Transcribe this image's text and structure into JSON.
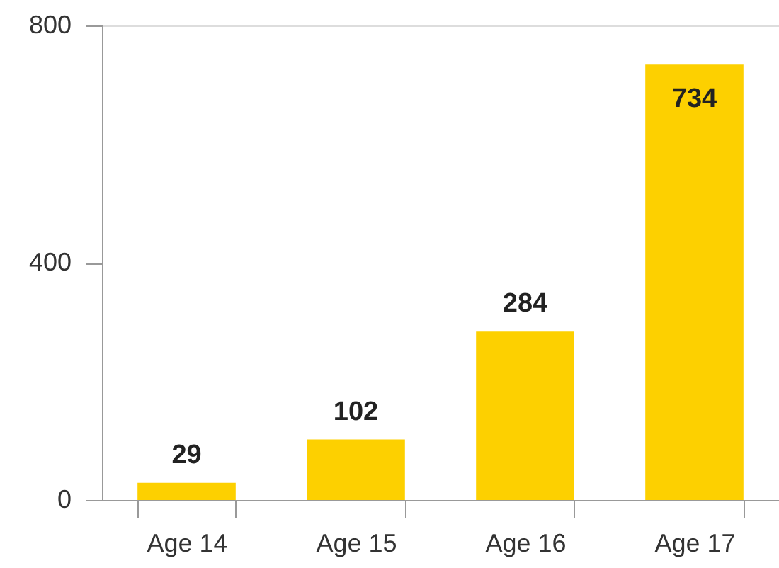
{
  "chart_data": {
    "type": "bar",
    "categories": [
      "Age 14",
      "Age 15",
      "Age 16",
      "Age 17"
    ],
    "values": [
      29,
      102,
      284,
      734
    ],
    "color": "#fdd000",
    "ylim": [
      0,
      800
    ],
    "yticks": [
      0,
      400,
      800
    ],
    "data_labels": true,
    "grid": false
  }
}
